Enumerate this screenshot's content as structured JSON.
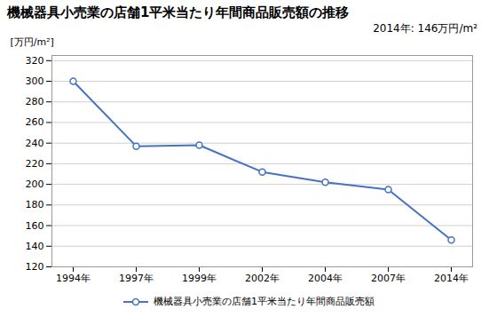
{
  "chart_data": {
    "type": "line",
    "title": "機械器具小売業の店舗1平米当たり年間商品販売額の推移",
    "ylabel": "[万円/m²]",
    "annotation": "2014年: 146万円/m²",
    "categories": [
      "1994年",
      "1997年",
      "1999年",
      "2002年",
      "2004年",
      "2007年",
      "2014年"
    ],
    "series": [
      {
        "name": "機械器具小売業の店舗1平米当たり年間商品販売額",
        "color": "#4472C4",
        "marker": "circle",
        "values": [
          300,
          237,
          238,
          212,
          202,
          195,
          146
        ]
      }
    ],
    "ylim": [
      120,
      325
    ],
    "yticks": [
      120,
      140,
      160,
      180,
      200,
      220,
      240,
      260,
      280,
      300,
      320
    ],
    "grid": true,
    "legend": "bottom"
  }
}
